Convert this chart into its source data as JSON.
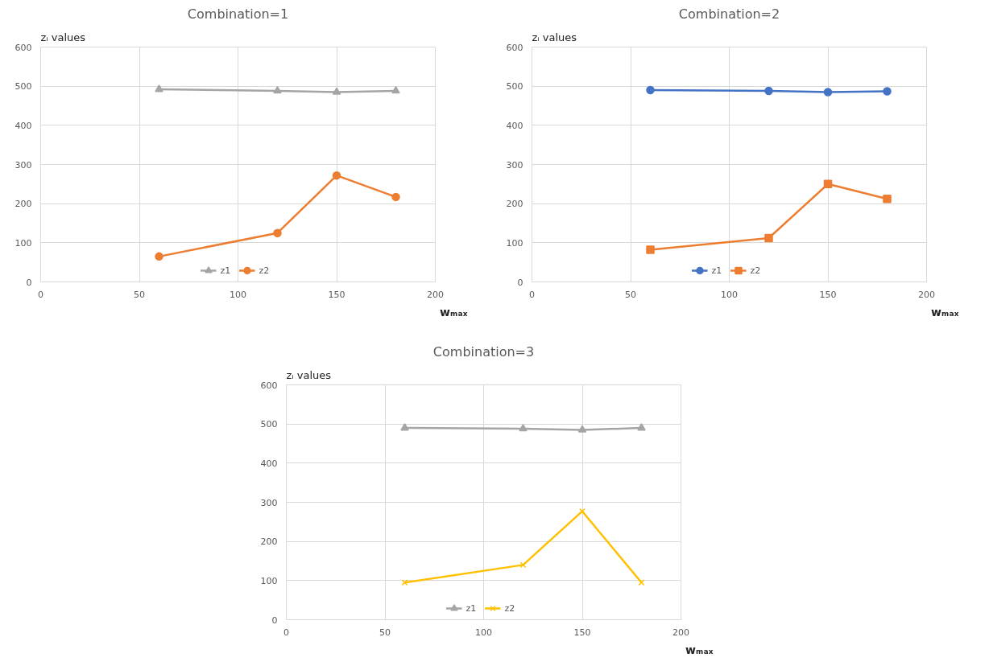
{
  "chart_data": [
    {
      "type": "line",
      "title": "Combination=1",
      "ylabel": "zᵢ values",
      "xlabel": "wₘₐₓ",
      "x": [
        60,
        120,
        150,
        180
      ],
      "xlim": [
        0,
        200
      ],
      "xticks": [
        0,
        50,
        100,
        150,
        200
      ],
      "ylim": [
        0,
        600
      ],
      "yticks": [
        0,
        100,
        200,
        300,
        400,
        500,
        600
      ],
      "grid": true,
      "legend": "bottom",
      "series": [
        {
          "name": "z1",
          "color": "#a5a5a5",
          "marker": "triangle",
          "values": [
            492,
            488,
            485,
            488
          ]
        },
        {
          "name": "z2",
          "color": "#ed7d31",
          "marker": "circle",
          "values": [
            65,
            125,
            272,
            217
          ]
        }
      ]
    },
    {
      "type": "line",
      "title": "Combination=2",
      "ylabel": "zᵢ values",
      "xlabel": "wₘₐₓ",
      "x": [
        60,
        120,
        150,
        180
      ],
      "xlim": [
        0,
        200
      ],
      "xticks": [
        0,
        50,
        100,
        150,
        200
      ],
      "ylim": [
        0,
        600
      ],
      "yticks": [
        0,
        100,
        200,
        300,
        400,
        500,
        600
      ],
      "grid": true,
      "legend": "bottom",
      "series": [
        {
          "name": "z1",
          "color": "#4472c4",
          "marker": "circle",
          "values": [
            490,
            488,
            485,
            487
          ]
        },
        {
          "name": "z2",
          "color": "#ed7d31",
          "marker": "square",
          "values": [
            82,
            112,
            250,
            212
          ]
        }
      ]
    },
    {
      "type": "line",
      "title": "Combination=3",
      "ylabel": "zᵢ values",
      "xlabel": "wₘₐₓ",
      "x": [
        60,
        120,
        150,
        180
      ],
      "xlim": [
        0,
        200
      ],
      "xticks": [
        0,
        50,
        100,
        150,
        200
      ],
      "ylim": [
        0,
        600
      ],
      "yticks": [
        0,
        100,
        200,
        300,
        400,
        500,
        600
      ],
      "grid": true,
      "legend": "bottom",
      "series": [
        {
          "name": "z1",
          "color": "#a5a5a5",
          "marker": "triangle",
          "values": [
            490,
            488,
            485,
            490
          ]
        },
        {
          "name": "z2",
          "color": "#ffc000",
          "marker": "cross",
          "values": [
            95,
            140,
            277,
            95
          ]
        }
      ]
    }
  ]
}
